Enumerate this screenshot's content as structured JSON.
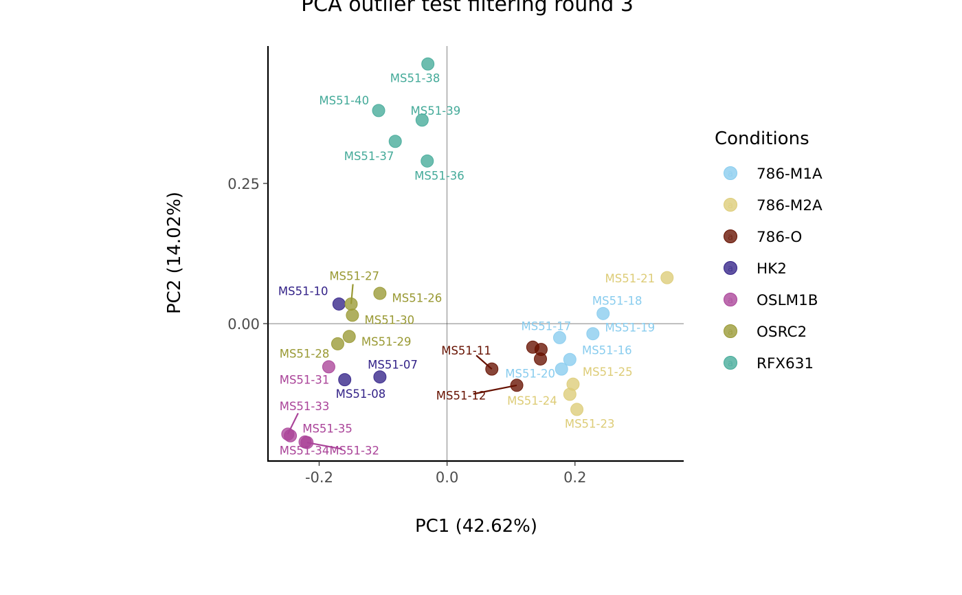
{
  "chart_data": {
    "type": "scatter",
    "title": "PCA outlier test filtering round  3",
    "xlabel": "PC1 (42.62%)",
    "ylabel": "PC2 (14.02%)",
    "xlim": [
      -0.28,
      0.37
    ],
    "ylim": [
      -0.245,
      0.495
    ],
    "x_ticks": [
      -0.2,
      0.0,
      0.2
    ],
    "x_tick_labels": [
      "-0.2",
      "0.0",
      "0.2"
    ],
    "y_ticks": [
      0.0,
      0.25
    ],
    "y_tick_labels": [
      "0.00",
      "0.25"
    ],
    "reference_lines": {
      "x": 0,
      "y": 0
    },
    "legend": {
      "title": "Conditions",
      "position": "right",
      "key_glyph": "a"
    },
    "colors": {
      "786-M1A": "#88CCEE",
      "786-M2A": "#DDCC77",
      "786-O": "#661100",
      "HK2": "#332288",
      "OSLM1B": "#AA4499",
      "OSRC2": "#999933",
      "RFX631": "#44AA99"
    },
    "label_colors": {
      "786-M1A": "#88CCEE",
      "786-M2A": "#DDCC77",
      "786-O": "#661100",
      "HK2": "#332288",
      "OSLM1B": "#AA4499",
      "OSRC2": "#999933",
      "RFX631": "#44AA99"
    },
    "series": [
      {
        "name": "786-M1A",
        "points": [
          {
            "label": "MS51-16",
            "x": 0.192,
            "y": -0.064,
            "lx": 0.25,
            "ly": -0.047
          },
          {
            "label": "MS51-17",
            "x": 0.176,
            "y": -0.025,
            "lx": 0.155,
            "ly": -0.004
          },
          {
            "label": "MS51-18",
            "x": 0.244,
            "y": 0.018,
            "lx": 0.266,
            "ly": 0.041
          },
          {
            "label": "MS51-19",
            "x": 0.228,
            "y": -0.018,
            "lx": 0.286,
            "ly": -0.007
          },
          {
            "label": "MS51-20",
            "x": 0.179,
            "y": -0.081,
            "lx": 0.13,
            "ly": -0.089
          }
        ]
      },
      {
        "name": "786-M2A",
        "points": [
          {
            "label": "MS51-21",
            "x": 0.344,
            "y": 0.082,
            "lx": 0.286,
            "ly": 0.081
          },
          {
            "label": "MS51-23",
            "x": 0.203,
            "y": -0.153,
            "lx": 0.223,
            "ly": -0.178
          },
          {
            "label": "MS51-24",
            "x": 0.192,
            "y": -0.126,
            "lx": 0.133,
            "ly": -0.137
          },
          {
            "label": "MS51-25",
            "x": 0.197,
            "y": -0.108,
            "lx": 0.251,
            "ly": -0.086
          }
        ]
      },
      {
        "name": "786-O",
        "points": [
          {
            "label": "MS51-11",
            "x": 0.07,
            "y": -0.081,
            "lx": 0.03,
            "ly": -0.048,
            "leader": true
          },
          {
            "label": "MS51-12",
            "x": 0.109,
            "y": -0.11,
            "lx": 0.022,
            "ly": -0.128,
            "leader": true
          },
          {
            "label": "786-O c",
            "x": 0.134,
            "y": -0.042,
            "hide_label": true
          },
          {
            "label": "786-O d",
            "x": 0.147,
            "y": -0.046,
            "hide_label": true
          },
          {
            "label": "786-O e",
            "x": 0.146,
            "y": -0.063,
            "hide_label": true
          }
        ]
      },
      {
        "name": "HK2",
        "points": [
          {
            "label": "MS51-07",
            "x": -0.105,
            "y": -0.095,
            "lx": -0.085,
            "ly": -0.073
          },
          {
            "label": "MS51-08",
            "x": -0.16,
            "y": -0.1,
            "lx": -0.135,
            "ly": -0.125
          },
          {
            "label": "MS51-10",
            "x": -0.169,
            "y": 0.035,
            "lx": -0.225,
            "ly": 0.058
          }
        ]
      },
      {
        "name": "OSLM1B",
        "points": [
          {
            "label": "MS51-31",
            "x": -0.185,
            "y": -0.077,
            "lx": -0.223,
            "ly": -0.1
          },
          {
            "label": "MS51-32",
            "x": -0.219,
            "y": -0.212,
            "lx": -0.145,
            "ly": -0.226,
            "leader": true
          },
          {
            "label": "MS51-33",
            "x": -0.249,
            "y": -0.197,
            "lx": -0.223,
            "ly": -0.147,
            "leader": true
          },
          {
            "label": "MS51-34",
            "x": -0.222,
            "y": -0.211,
            "lx": -0.223,
            "ly": -0.226
          },
          {
            "label": "MS51-35",
            "x": -0.245,
            "y": -0.2,
            "lx": -0.187,
            "ly": -0.187
          }
        ]
      },
      {
        "name": "OSRC2",
        "points": [
          {
            "label": "MS51-26",
            "x": -0.105,
            "y": 0.054,
            "lx": -0.047,
            "ly": 0.046
          },
          {
            "label": "MS51-27",
            "x": -0.15,
            "y": 0.035,
            "lx": -0.145,
            "ly": 0.085,
            "leader": true
          },
          {
            "label": "MS51-28",
            "x": -0.171,
            "y": -0.036,
            "lx": -0.223,
            "ly": -0.053
          },
          {
            "label": "MS51-29",
            "x": -0.153,
            "y": -0.023,
            "lx": -0.095,
            "ly": -0.032
          },
          {
            "label": "MS51-30",
            "x": -0.148,
            "y": 0.015,
            "lx": -0.09,
            "ly": 0.007
          }
        ]
      },
      {
        "name": "RFX631",
        "points": [
          {
            "label": "MS51-36",
            "x": -0.031,
            "y": 0.29,
            "lx": -0.012,
            "ly": 0.264
          },
          {
            "label": "MS51-37",
            "x": -0.081,
            "y": 0.325,
            "lx": -0.122,
            "ly": 0.299
          },
          {
            "label": "MS51-38",
            "x": -0.03,
            "y": 0.463,
            "lx": -0.05,
            "ly": 0.438
          },
          {
            "label": "MS51-39",
            "x": -0.039,
            "y": 0.363,
            "lx": -0.018,
            "ly": 0.38
          },
          {
            "label": "MS51-40",
            "x": -0.107,
            "y": 0.38,
            "lx": -0.161,
            "ly": 0.398
          }
        ]
      }
    ]
  }
}
